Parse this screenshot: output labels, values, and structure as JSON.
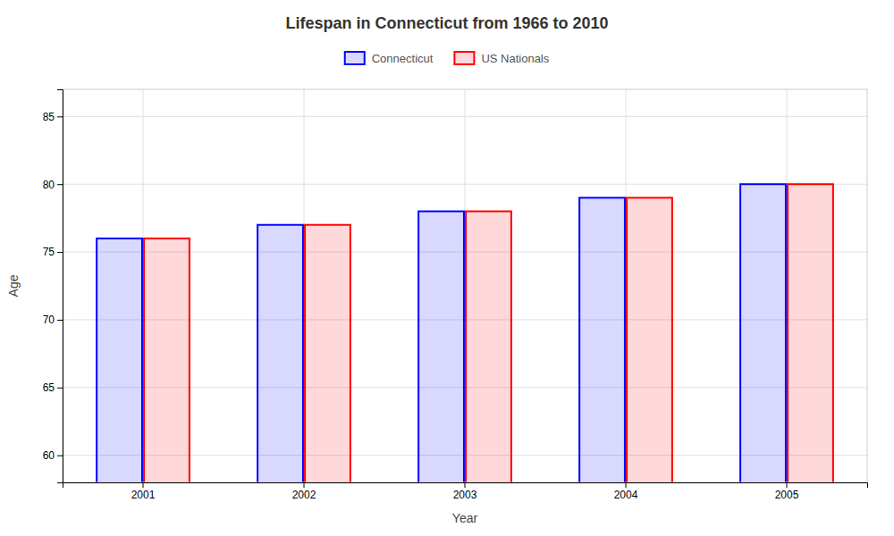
{
  "chart_data": {
    "type": "bar",
    "title": "Lifespan in Connecticut from 1966 to 2010",
    "xlabel": "Year",
    "ylabel": "Age",
    "categories": [
      "2001",
      "2002",
      "2003",
      "2004",
      "2005"
    ],
    "series": [
      {
        "name": "Connecticut",
        "color": "#0000ff",
        "values": [
          76,
          77,
          78,
          79,
          80
        ]
      },
      {
        "name": "US Nationals",
        "color": "#ff0000",
        "values": [
          76,
          77,
          78,
          79,
          80
        ]
      }
    ],
    "ylim": [
      58,
      87
    ],
    "yticks": [
      60,
      65,
      70,
      75,
      80,
      85
    ],
    "grid": true,
    "legend": "top"
  }
}
